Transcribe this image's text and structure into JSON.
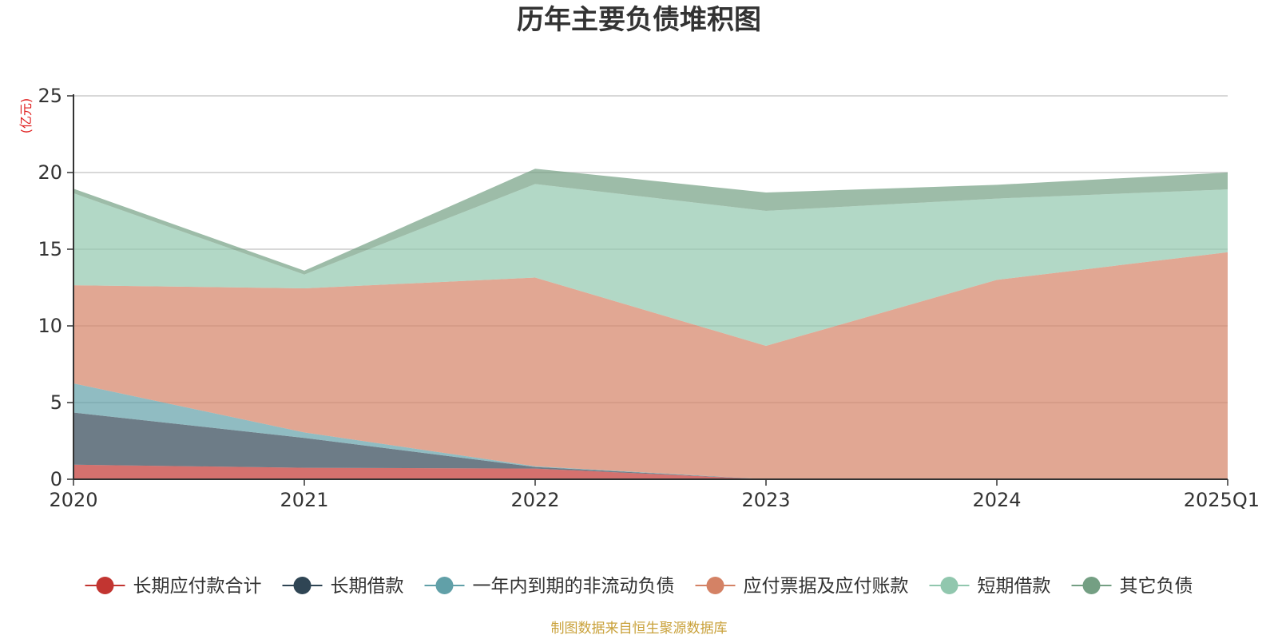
{
  "chart_data": {
    "type": "area",
    "stacked": true,
    "title": "历年主要负债堆积图",
    "unit_label": "(亿元)",
    "x": [
      "2020",
      "2021",
      "2022",
      "2023",
      "2024",
      "2025Q1"
    ],
    "ylim": [
      0,
      25
    ],
    "yticks": [
      "0",
      "5",
      "10",
      "15",
      "20",
      "25"
    ],
    "grid": true,
    "legend_position": "bottom",
    "series": [
      {
        "name": "长期应付款合计",
        "color": "#c23531",
        "values": [
          0.95,
          0.75,
          0.7,
          0.0,
          0.0,
          0.0
        ]
      },
      {
        "name": "长期借款",
        "color": "#2f4554",
        "values": [
          3.4,
          1.95,
          0.1,
          0.0,
          0.0,
          0.0
        ]
      },
      {
        "name": "一年内到期的非流动负债",
        "color": "#61a0a8",
        "values": [
          1.9,
          0.35,
          0.05,
          0.0,
          0.0,
          0.0
        ]
      },
      {
        "name": "应付票据及应付账款",
        "color": "#d48265",
        "values": [
          6.4,
          9.4,
          12.3,
          8.7,
          13.0,
          14.8
        ]
      },
      {
        "name": "短期借款",
        "color": "#91c7ae",
        "values": [
          6.0,
          0.9,
          6.1,
          8.8,
          5.3,
          4.1
        ]
      },
      {
        "name": "其它负债",
        "color": "#749f83",
        "values": [
          0.3,
          0.25,
          1.0,
          1.2,
          0.9,
          1.1
        ]
      }
    ]
  },
  "source": "制图数据来自恒生聚源数据库"
}
